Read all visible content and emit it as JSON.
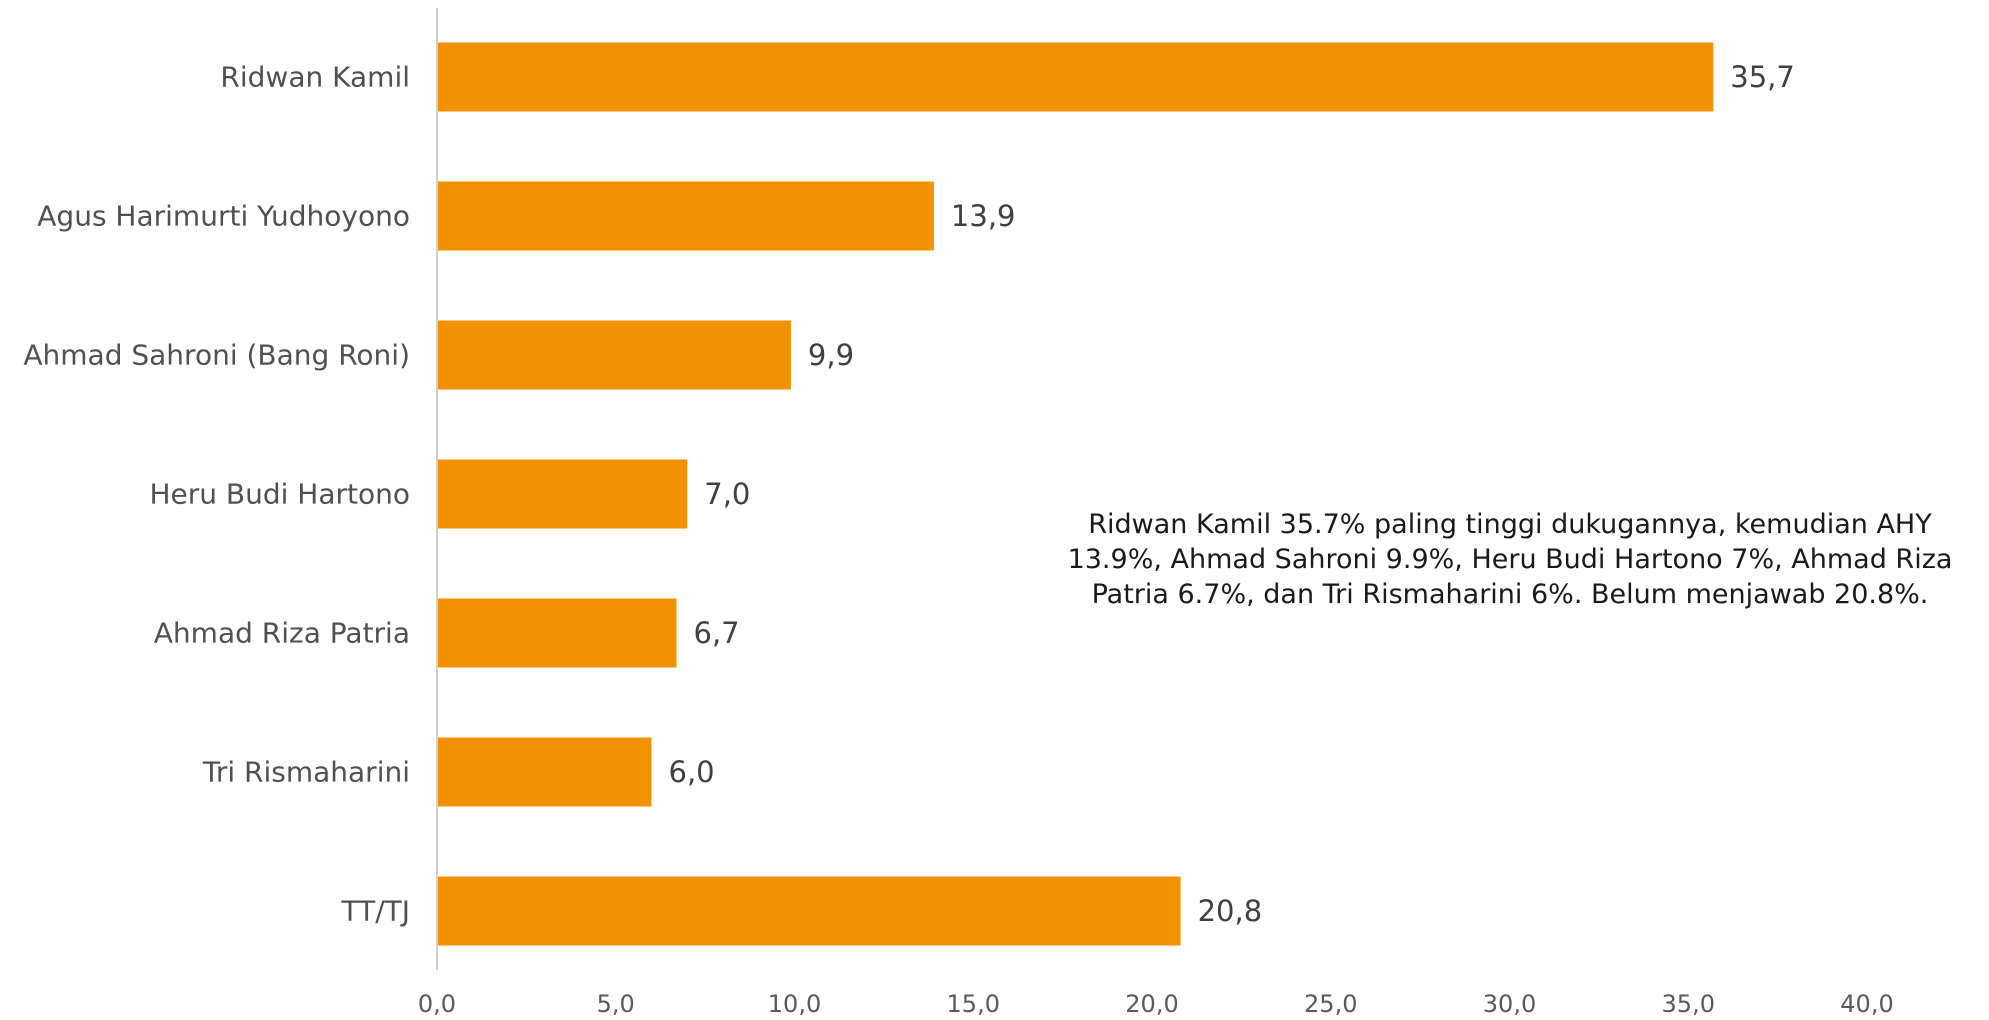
{
  "chart_data": {
    "type": "bar",
    "orientation": "horizontal",
    "categories": [
      "Ridwan Kamil",
      "Agus Harimurti Yudhoyono",
      "Ahmad Sahroni (Bang Roni)",
      "Heru Budi Hartono",
      "Ahmad Riza Patria",
      "Tri Rismaharini",
      "TT/TJ"
    ],
    "values": [
      35.7,
      13.9,
      9.9,
      7.0,
      6.7,
      6.0,
      20.8
    ],
    "value_labels": [
      "35,7",
      "13,9",
      "9,9",
      "7,0",
      "6,7",
      "6,0",
      "20,8"
    ],
    "xlim": [
      0,
      40
    ],
    "x_ticks": [
      "0,0",
      "5,0",
      "10,0",
      "15,0",
      "20,0",
      "25,0",
      "30,0",
      "35,0",
      "40,0"
    ],
    "bar_color": "#F39200",
    "grid": false,
    "title": "",
    "xlabel": "",
    "ylabel": ""
  },
  "annotation": "Ridwan Kamil 35.7% paling tinggi dukugannya, kemudian AHY 13.9%, Ahmad Sahroni 9.9%, Heru Budi Hartono 7%, Ahmad Riza Patria 6.7%, dan Tri Rismaharini 6%. Belum menjawab 20.8%."
}
